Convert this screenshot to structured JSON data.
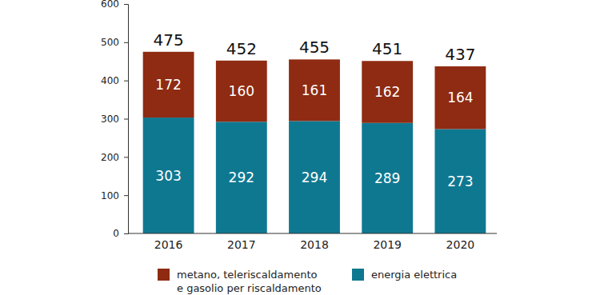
{
  "chart_data": {
    "type": "bar",
    "stacked": true,
    "data_labels": true,
    "categories": [
      "2016",
      "2017",
      "2018",
      "2019",
      "2020"
    ],
    "series": [
      {
        "name": "energia elettrica",
        "color": "#0f7891",
        "values": [
          303,
          292,
          294,
          289,
          273
        ]
      },
      {
        "name": "metano, teleriscaldamento\ne gasolio per riscaldamento",
        "color": "#8e2b12",
        "values": [
          172,
          160,
          161,
          162,
          164
        ]
      }
    ],
    "totals": [
      475,
      452,
      455,
      451,
      437
    ],
    "ylim": [
      0,
      600
    ],
    "yticks": [
      0,
      100,
      200,
      300,
      400,
      500,
      600
    ],
    "grid": false
  }
}
